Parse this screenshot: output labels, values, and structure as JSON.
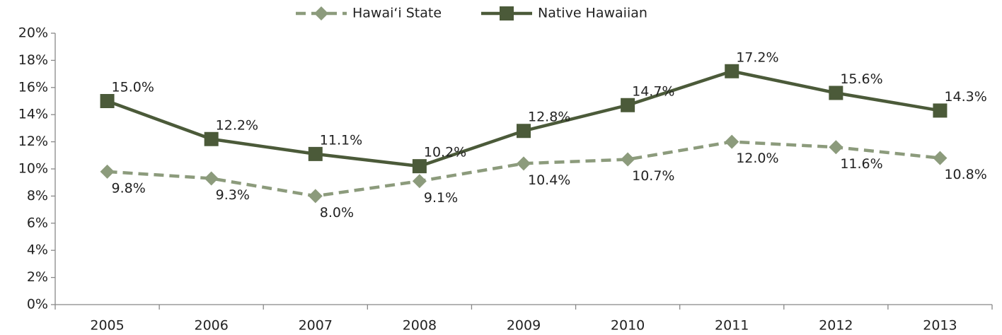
{
  "chart_data": {
    "type": "line",
    "categories": [
      "2005",
      "2006",
      "2007",
      "2008",
      "2009",
      "2010",
      "2011",
      "2012",
      "2013"
    ],
    "series": [
      {
        "name": "Hawai‘i State",
        "color": "#8c9b7c",
        "dashed": true,
        "marker": "diamond",
        "values": [
          9.8,
          9.3,
          8.0,
          9.1,
          10.4,
          10.7,
          12.0,
          11.6,
          10.8
        ],
        "value_labels": [
          "9.8%",
          "9.3%",
          "8.0%",
          "9.1%",
          "10.4%",
          "10.7%",
          "12.0%",
          "11.6%",
          "10.8%"
        ]
      },
      {
        "name": "Native Hawaiian",
        "color": "#4b5a39",
        "dashed": false,
        "marker": "square",
        "values": [
          15.0,
          12.2,
          11.1,
          10.2,
          12.8,
          14.7,
          17.2,
          15.6,
          14.3
        ],
        "value_labels": [
          "15.0%",
          "12.2%",
          "11.1%",
          "10.2%",
          "12.8%",
          "14.7%",
          "17.2%",
          "15.6%",
          "14.3%"
        ]
      }
    ],
    "ylim": [
      0,
      20
    ],
    "yticks": [
      {
        "value": 0,
        "label": "0%"
      },
      {
        "value": 2,
        "label": "2%"
      },
      {
        "value": 4,
        "label": "4%"
      },
      {
        "value": 6,
        "label": "6%"
      },
      {
        "value": 8,
        "label": "8%"
      },
      {
        "value": 10,
        "label": "10%"
      },
      {
        "value": 12,
        "label": "12%"
      },
      {
        "value": 14,
        "label": "14%"
      },
      {
        "value": 16,
        "label": "16%"
      },
      {
        "value": 18,
        "label": "18%"
      },
      {
        "value": 20,
        "label": "20%"
      }
    ],
    "grid": false,
    "legend": "top"
  }
}
